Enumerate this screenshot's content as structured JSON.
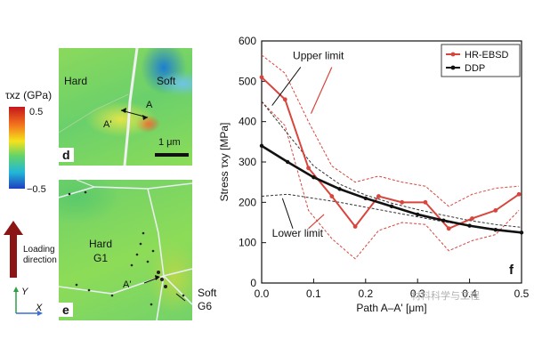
{
  "colorbar": {
    "label": "τxz (GPa)",
    "max_label": "0.5",
    "min_label": "−0.5"
  },
  "loading": {
    "label_line1": "Loading",
    "label_line2": "direction"
  },
  "axes_key": {
    "y": "Y",
    "x": "X"
  },
  "panel_d": {
    "letter": "d",
    "hard": "Hard",
    "soft": "Soft",
    "a": "A",
    "a_prime": "A'",
    "scale": "1 μm"
  },
  "panel_e": {
    "letter": "e",
    "hard_line1": "Hard",
    "hard_line2": "G1",
    "soft_line1": "Soft",
    "soft_line2": "G6",
    "a_prime": "A'"
  },
  "watermark": "材料科学与工程",
  "chart_data": {
    "type": "line",
    "panel_letter": "f",
    "xlabel": "Path A–A' [μm]",
    "ylabel": "Stress τxy [MPa]",
    "xlim": [
      0,
      0.5
    ],
    "ylim": [
      0,
      600
    ],
    "x_ticks": [
      "0.0",
      "0.1",
      "0.2",
      "0.3",
      "0.4",
      "0.5"
    ],
    "y_ticks": [
      "0",
      "100",
      "200",
      "300",
      "400",
      "500",
      "600"
    ],
    "legend_position": "top-right",
    "annotations": [
      "Upper limit",
      "Lower limit"
    ],
    "series": [
      {
        "name": "HR-EBSD",
        "color": "#d9453d",
        "x": [
          0.0,
          0.045,
          0.09,
          0.135,
          0.18,
          0.225,
          0.27,
          0.315,
          0.36,
          0.405,
          0.45,
          0.495
        ],
        "values": [
          510,
          455,
          285,
          215,
          140,
          215,
          200,
          200,
          135,
          160,
          180,
          220
        ]
      },
      {
        "name": "DDP",
        "color": "#111111",
        "x": [
          0.0,
          0.05,
          0.1,
          0.15,
          0.2,
          0.25,
          0.3,
          0.35,
          0.4,
          0.45,
          0.5
        ],
        "values": [
          340,
          300,
          262,
          233,
          210,
          190,
          170,
          155,
          142,
          132,
          125
        ]
      }
    ],
    "bounds": [
      {
        "x": [
          0.0,
          0.045,
          0.09,
          0.135,
          0.18,
          0.225,
          0.27,
          0.315,
          0.36,
          0.405,
          0.45,
          0.495
        ],
        "values": [
          565,
          520,
          400,
          290,
          250,
          265,
          250,
          240,
          190,
          220,
          235,
          240
        ],
        "color": "#d9453d"
      },
      {
        "x": [
          0.0,
          0.045,
          0.09,
          0.135,
          0.18,
          0.225,
          0.27,
          0.315,
          0.36,
          0.405,
          0.45,
          0.495
        ],
        "values": [
          450,
          390,
          180,
          110,
          60,
          130,
          150,
          145,
          80,
          105,
          120,
          180
        ],
        "color": "#d9453d"
      },
      {
        "x": [
          0.0,
          0.05,
          0.1,
          0.15,
          0.2,
          0.25,
          0.3,
          0.35,
          0.4,
          0.45,
          0.5
        ],
        "values": [
          450,
          370,
          290,
          245,
          218,
          198,
          182,
          168,
          155,
          145,
          138
        ],
        "color": "#333333"
      },
      {
        "x": [
          0.0,
          0.05,
          0.1,
          0.15,
          0.2,
          0.25,
          0.3,
          0.35,
          0.4,
          0.45,
          0.5
        ],
        "values": [
          215,
          220,
          210,
          200,
          188,
          176,
          164,
          152,
          142,
          134,
          126
        ],
        "color": "#333333"
      }
    ]
  }
}
